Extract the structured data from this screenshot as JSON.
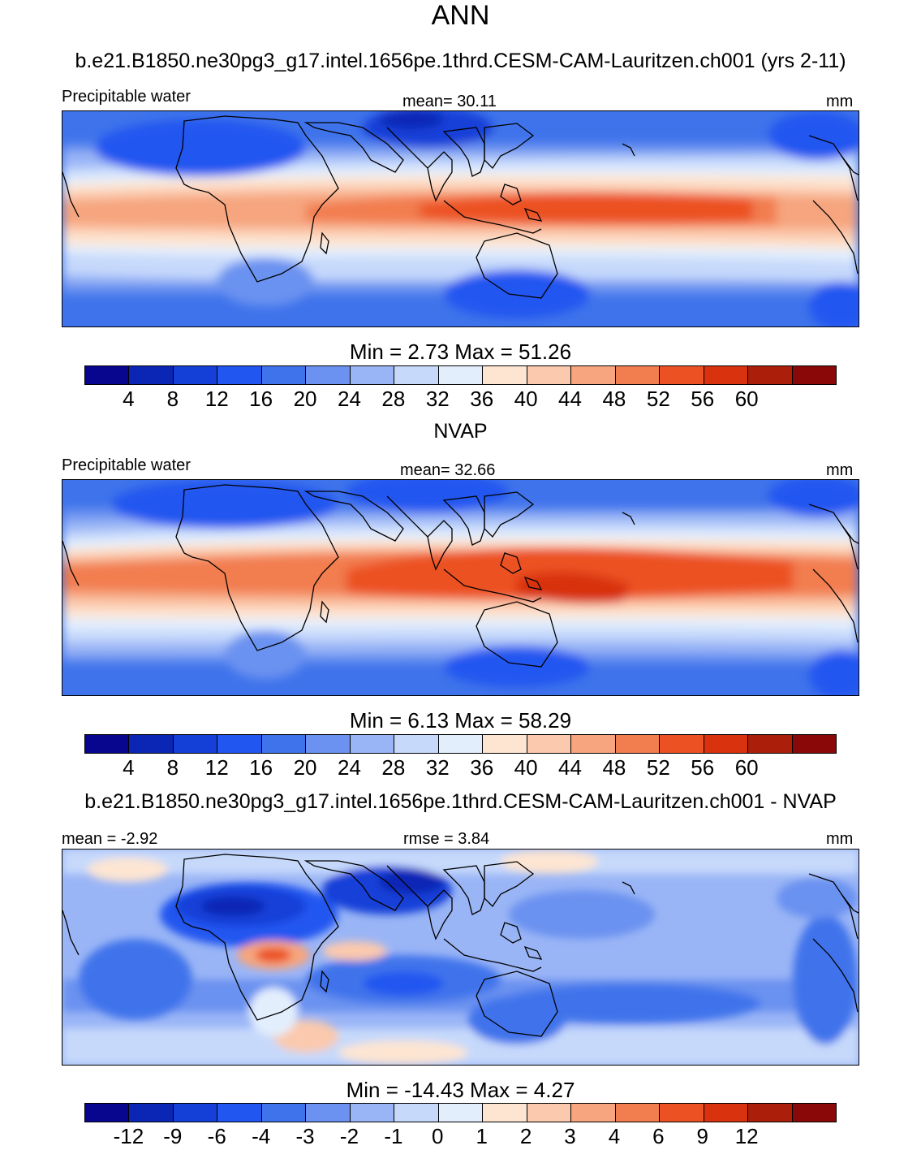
{
  "figure": {
    "title": "ANN",
    "case_title": "b.e21.B1850.ne30pg3_g17.intel.1656pe.1thrd.CESM-CAM-Lauritzen.ch001 (yrs 2-11)",
    "reference_title": "NVAP",
    "diff_title": "b.e21.B1850.ne30pg3_g17.intel.1656pe.1thrd.CESM-CAM-Lauritzen.ch001 - NVAP"
  },
  "colors": [
    "#08068f",
    "#0b26b5",
    "#1540d8",
    "#2256f0",
    "#3f73eb",
    "#6b92f0",
    "#9ab5f6",
    "#c6d9fb",
    "#e3eefd",
    "#fde5d2",
    "#fbc9ad",
    "#f6a57e",
    "#f27d4f",
    "#ec5124",
    "#d8320e",
    "#ab1e0a",
    "#8a0808"
  ],
  "chart_data": [
    {
      "type": "heatmap",
      "name": "model",
      "left_label": "Precipitable water",
      "center_label": "mean=  30.11",
      "units": "mm",
      "mean": 30.11,
      "min": 2.73,
      "max": 51.26,
      "minmax_label": "Min =   2.73 Max =   51.26",
      "colorbar_levels": [
        "4",
        "8",
        "12",
        "16",
        "20",
        "24",
        "28",
        "32",
        "36",
        "40",
        "44",
        "48",
        "52",
        "56",
        "60"
      ]
    },
    {
      "type": "heatmap",
      "name": "reference",
      "left_label": "Precipitable water",
      "center_label": "mean=  32.66",
      "units": "mm",
      "mean": 32.66,
      "min": 6.13,
      "max": 58.29,
      "minmax_label": "Min =   6.13 Max =   58.29",
      "colorbar_levels": [
        "4",
        "8",
        "12",
        "16",
        "20",
        "24",
        "28",
        "32",
        "36",
        "40",
        "44",
        "48",
        "52",
        "56",
        "60"
      ]
    },
    {
      "type": "heatmap",
      "name": "difference",
      "left_label": "mean =  -2.92",
      "center_label": "rmse =   3.84",
      "units": "mm",
      "mean": -2.92,
      "rmse": 3.84,
      "min": -14.43,
      "max": 4.27,
      "minmax_label": "Min = -14.43 Max =   4.27",
      "colorbar_levels": [
        "-12",
        "-9",
        "-6",
        "-4",
        "-3",
        "-2",
        "-1",
        "0",
        "1",
        "2",
        "3",
        "4",
        "6",
        "9",
        "12"
      ]
    }
  ]
}
